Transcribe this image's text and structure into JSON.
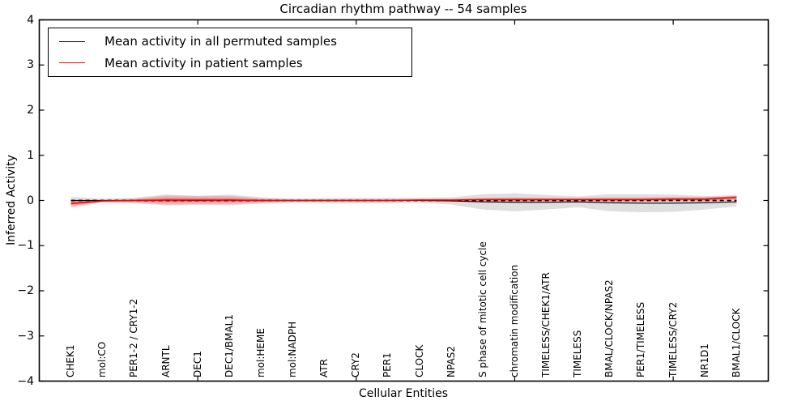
{
  "title": "Circadian rhythm pathway -- 54 samples",
  "axes": {
    "xlabel": "Cellular Entities",
    "ylabel": "Inferred Activity"
  },
  "legend": {
    "position": "upper left",
    "items": [
      {
        "label": "Mean activity in all permuted samples",
        "color": "#000000"
      },
      {
        "label": "Mean activity in patient samples",
        "color": "#ff0000"
      }
    ]
  },
  "colors": {
    "permuted_line": "#000000",
    "permuted_band": "rgba(128,128,128,0.25)",
    "patient_line": "#ff0000",
    "patient_band_outer": "rgba(255,0,0,0.16)",
    "patient_band_inner": "rgba(255,0,0,0.30)",
    "zero_reference": "#000000",
    "spine": "#000000",
    "background": "#ffffff"
  },
  "chart_data": {
    "type": "line",
    "title": "Circadian rhythm pathway -- 54 samples",
    "xlabel": "Cellular Entities",
    "ylabel": "Inferred Activity",
    "ylim": [
      -4,
      4
    ],
    "xlim": [
      0,
      23
    ],
    "grid": false,
    "legend_position": "upper left",
    "yticks": [
      4,
      3,
      2,
      1,
      0,
      -1,
      -2,
      -3,
      -4
    ],
    "ytick_labels": [
      "4",
      "3",
      "2",
      "1",
      "0",
      "−1",
      "−2",
      "−3",
      "−4"
    ],
    "x_major_ticks": [
      5,
      10,
      15,
      20
    ],
    "categories": [
      "CHEK1",
      "mol:CO",
      "PER1-2 / CRY1-2",
      "ARNTL",
      "DEC1",
      "DEC1/BMAL1",
      "mol:HEME",
      "mol:NADPH",
      "ATR",
      "CRY2",
      "PER1",
      "CLOCK",
      "NPAS2",
      "S phase of mitotic cell cycle",
      "chromatin modification",
      "TIMELESS/CHEK1/ATR",
      "TIMELESS",
      "BMAL/CLOCK/NPAS2",
      "PER1/TIMELESS",
      "TIMELESS/CRY2",
      "NR1D1",
      "BMAL1/CLOCK"
    ],
    "x": [
      1,
      2,
      3,
      4,
      5,
      6,
      7,
      8,
      9,
      10,
      11,
      12,
      13,
      14,
      15,
      16,
      17,
      18,
      19,
      20,
      21,
      22
    ],
    "series": [
      {
        "name": "Mean activity in all permuted samples",
        "style": "solid",
        "color": "#000000",
        "values": [
          0.0,
          0.0,
          0.0,
          0.01,
          0.0,
          0.01,
          0.0,
          0.0,
          0.0,
          0.0,
          0.0,
          0.0,
          -0.01,
          -0.03,
          -0.04,
          -0.04,
          -0.03,
          -0.05,
          -0.06,
          -0.06,
          -0.05,
          -0.03
        ],
        "band_halfwidth": [
          0.08,
          0.04,
          0.06,
          0.12,
          0.1,
          0.12,
          0.07,
          0.04,
          0.05,
          0.06,
          0.06,
          0.05,
          0.08,
          0.17,
          0.2,
          0.16,
          0.12,
          0.19,
          0.2,
          0.19,
          0.15,
          0.1
        ]
      },
      {
        "name": "Mean activity in patient samples",
        "style": "solid",
        "color": "#ff0000",
        "values": [
          -0.07,
          -0.01,
          0.0,
          0.01,
          0.01,
          0.01,
          0.0,
          0.0,
          0.0,
          0.0,
          0.0,
          0.01,
          0.01,
          0.02,
          0.02,
          0.02,
          0.02,
          0.02,
          0.02,
          0.03,
          0.03,
          0.07
        ],
        "band_outer_halfwidth": [
          0.09,
          0.03,
          0.04,
          0.1,
          0.09,
          0.09,
          0.05,
          0.03,
          0.03,
          0.03,
          0.03,
          0.03,
          0.03,
          0.04,
          0.05,
          0.04,
          0.04,
          0.05,
          0.05,
          0.05,
          0.05,
          0.06
        ],
        "band_inner_halfwidth": [
          0.05,
          0.015,
          0.02,
          0.05,
          0.045,
          0.045,
          0.025,
          0.015,
          0.015,
          0.015,
          0.015,
          0.015,
          0.015,
          0.02,
          0.025,
          0.02,
          0.02,
          0.025,
          0.025,
          0.025,
          0.025,
          0.03
        ]
      },
      {
        "name": "zero-reference",
        "style": "dashed",
        "color": "#000000",
        "value": 0
      }
    ]
  }
}
